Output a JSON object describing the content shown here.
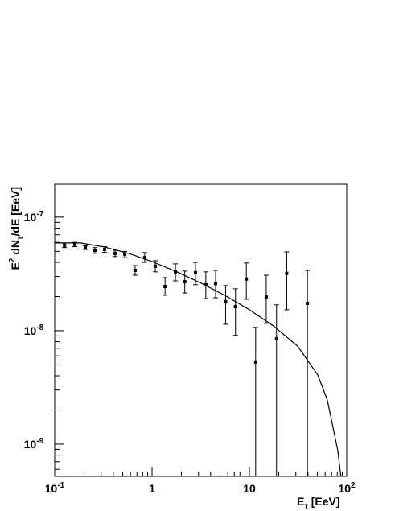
{
  "chart_data": {
    "type": "scatter",
    "ylabel": [
      "E",
      "2",
      " dN",
      "τ",
      "/dE [EeV]"
    ],
    "xlabel": [
      "E",
      "τ",
      " [EeV]"
    ],
    "log_x": true,
    "log_y": true,
    "color": "#000000",
    "xlim": [
      0.1,
      100
    ],
    "ylim": [
      5.2e-10,
      1.95e-07
    ],
    "xticks": [
      {
        "value": 0.1,
        "label": "10",
        "exponent": "-1"
      },
      {
        "value": 1,
        "label": "1"
      },
      {
        "value": 10,
        "label": "10"
      },
      {
        "value": 100,
        "label": "10",
        "exponent": "2"
      }
    ],
    "xminorticks": [
      0.2,
      0.3,
      0.4,
      0.5,
      0.6,
      0.7,
      0.8,
      0.9,
      2,
      3,
      4,
      5,
      6,
      7,
      8,
      9,
      20,
      30,
      40,
      50,
      60,
      70,
      80,
      90
    ],
    "yticks": [
      {
        "value": 1e-09,
        "label": "10",
        "exponent": "-9"
      },
      {
        "value": 1e-08,
        "label": "10",
        "exponent": "-8"
      },
      {
        "value": 1e-07,
        "label": "10",
        "exponent": "-7"
      }
    ],
    "yminorticks": [
      6e-10,
      7e-10,
      8e-10,
      9e-10,
      2e-09,
      3e-09,
      4e-09,
      5e-09,
      6e-09,
      7e-09,
      8e-09,
      9e-09,
      2e-08,
      3e-08,
      4e-08,
      5e-08,
      6e-08,
      7e-08,
      8e-08,
      9e-08
    ],
    "x": [
      0.126,
      0.161,
      0.206,
      0.259,
      0.325,
      0.417,
      0.525,
      0.67,
      0.84,
      1.08,
      1.36,
      1.74,
      2.17,
      2.79,
      3.57,
      4.5,
      5.7,
      7.2,
      9.3,
      11.6,
      14.9,
      19.0,
      24.2,
      39.5
    ],
    "values": [
      5.65e-08,
      5.75e-08,
      5.4e-08,
      5.1e-08,
      5.2e-08,
      4.8e-08,
      4.7e-08,
      3.4e-08,
      4.4e-08,
      3.7e-08,
      2.45e-08,
      3.3e-08,
      2.7e-08,
      3.25e-08,
      2.54e-08,
      2.6e-08,
      1.8e-08,
      1.63e-08,
      2.85e-08,
      5.3e-09,
      1.99e-08,
      8.5e-09,
      3.2e-08,
      1.74e-08
    ],
    "upper": [
      5.9e-08,
      6e-08,
      5.6e-08,
      5.4e-08,
      5.5e-08,
      5.1e-08,
      5e-08,
      3.75e-08,
      4.88e-08,
      4.14e-08,
      2.94e-08,
      3.88e-08,
      3.35e-08,
      4e-08,
      3.3e-08,
      3.4e-08,
      2.5e-08,
      2.34e-08,
      3.95e-08,
      1.07e-08,
      3.08e-08,
      1.69e-08,
      4.95e-08,
      3.4e-08
    ],
    "lower": [
      5.4e-08,
      5.5e-08,
      5.2e-08,
      4.8e-08,
      4.9e-08,
      4.5e-08,
      4.4e-08,
      3.08e-08,
      4e-08,
      3.3e-08,
      2.05e-08,
      2.75e-08,
      2.15e-08,
      2.54e-08,
      1.92e-08,
      1.95e-08,
      1.14e-08,
      9.1e-09,
      1.89e-08,
      3e-10,
      1.16e-08,
      3e-10,
      1.53e-08,
      3e-10
    ],
    "model_x": [
      0.1,
      0.184,
      0.325,
      0.576,
      1,
      1.8,
      3.2,
      5.6,
      10,
      17.7,
      31.3,
      50.5,
      63.2,
      81,
      87
    ],
    "model_values": [
      5.93e-08,
      5.93e-08,
      5.47e-08,
      4.8e-08,
      4.07e-08,
      3.3e-08,
      2.62e-08,
      2.05e-08,
      1.53e-08,
      1.1e-08,
      7.3e-09,
      4.07e-09,
      2.45e-09,
      8.8e-10,
      5.2e-10
    ]
  }
}
